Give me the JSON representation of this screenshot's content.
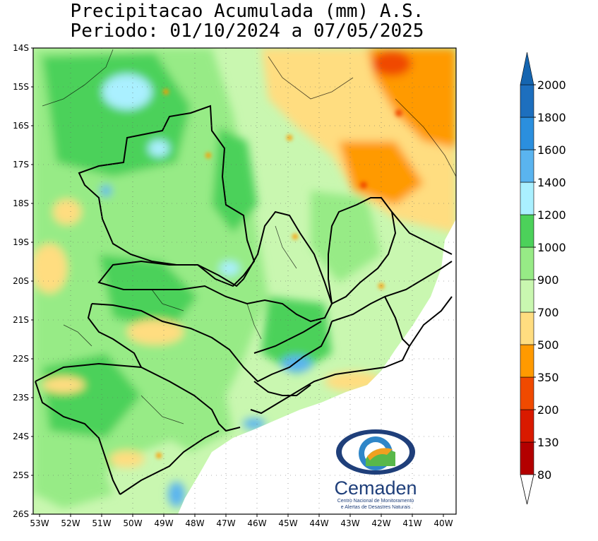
{
  "header": {
    "title_line1": "Precipitacao Acumulada (mm) A.S.",
    "title_line2": "Periodo: 01/10/2024 a 07/05/2025"
  },
  "map": {
    "lat_ticks": [
      "14S",
      "15S",
      "16S",
      "17S",
      "18S",
      "19S",
      "20S",
      "21S",
      "22S",
      "23S",
      "24S",
      "25S",
      "26S"
    ],
    "lon_ticks": [
      "53W",
      "52W",
      "51W",
      "50W",
      "49W",
      "48W",
      "47W",
      "46W",
      "45W",
      "44W",
      "43W",
      "42W",
      "41W",
      "40W"
    ],
    "ocean_color": "#ffffff"
  },
  "legend": {
    "bins": [
      {
        "label": "80",
        "color": "#b30000"
      },
      {
        "label": "130",
        "color": "#d91a00"
      },
      {
        "label": "200",
        "color": "#f04a00"
      },
      {
        "label": "350",
        "color": "#ff9a00"
      },
      {
        "label": "500",
        "color": "#ffdd80"
      },
      {
        "label": "700",
        "color": "#c9f7b0"
      },
      {
        "label": "900",
        "color": "#97eb86"
      },
      {
        "label": "1000",
        "color": "#4cd15a"
      },
      {
        "label": "1200",
        "color": "#aaf0ff"
      },
      {
        "label": "1400",
        "color": "#5ab4ef"
      },
      {
        "label": "1600",
        "color": "#2b8fde"
      },
      {
        "label": "1800",
        "color": "#1d6fbe"
      },
      {
        "label": "2000",
        "color": ""
      }
    ],
    "top_arrow_color": "#1565b0"
  },
  "logo": {
    "name": "Cemaden",
    "subtitle_line1": "Centro Nacional de Monitoramento",
    "subtitle_line2": "e Alertas de Desastres Naturais"
  }
}
